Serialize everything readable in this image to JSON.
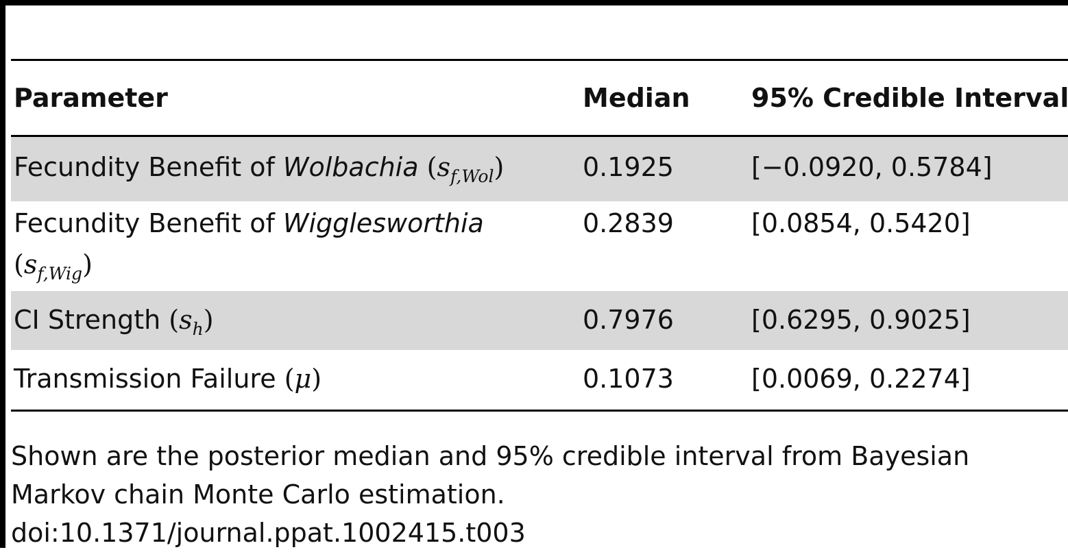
{
  "table": {
    "headers": {
      "parameter": "Parameter",
      "median": "Median",
      "interval": "95% Credible Interval"
    },
    "rows": [
      {
        "label": "Fecundity Benefit of",
        "organism": "Wolbachia",
        "symbol": "s",
        "subscript": "f,Wol",
        "median": "0.1925",
        "interval": "[−0.0920, 0.5784]"
      },
      {
        "label": "Fecundity Benefit of",
        "organism": "Wigglesworthia",
        "symbol": "s",
        "subscript": "f,Wig",
        "median": "0.2839",
        "interval": "[0.0854, 0.5420]"
      },
      {
        "label": "CI Strength",
        "symbol": "s",
        "subscript": "h",
        "median": "0.7976",
        "interval": "[0.6295, 0.9025]"
      },
      {
        "label": "Transmission Failure",
        "symbol": "μ",
        "median": "0.1073",
        "interval": "[0.0069, 0.2274]"
      }
    ]
  },
  "footnote": {
    "line1": "Shown are the posterior median and 95% credible interval from Bayesian",
    "line2": "Markov chain Monte Carlo estimation.",
    "doi": "doi:10.1371/journal.ppat.1002415.t003"
  }
}
